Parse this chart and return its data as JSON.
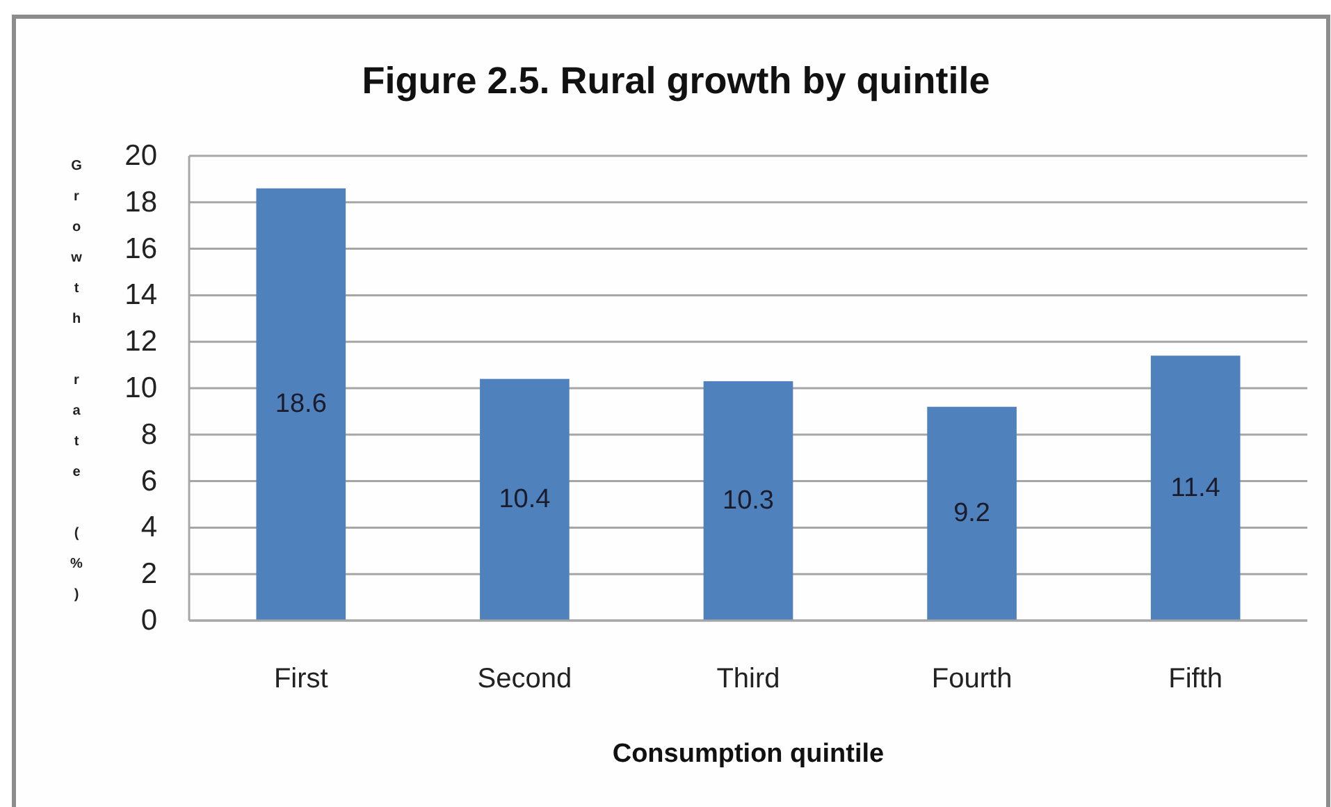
{
  "chart_data": {
    "type": "bar",
    "title": "Figure 2.5. Rural growth by quintile",
    "xlabel": "Consumption quintile",
    "ylabel": "Growth rate (%)",
    "categories": [
      "First",
      "Second",
      "Third",
      "Fourth",
      "Fifth"
    ],
    "values": [
      18.6,
      10.4,
      10.3,
      9.2,
      11.4
    ],
    "color": "#4f81bd",
    "ylim": [
      0,
      20
    ],
    "yticks": [
      0,
      2,
      4,
      6,
      8,
      10,
      12,
      14,
      16,
      18,
      20
    ],
    "grid": "y",
    "data_labels": true
  }
}
